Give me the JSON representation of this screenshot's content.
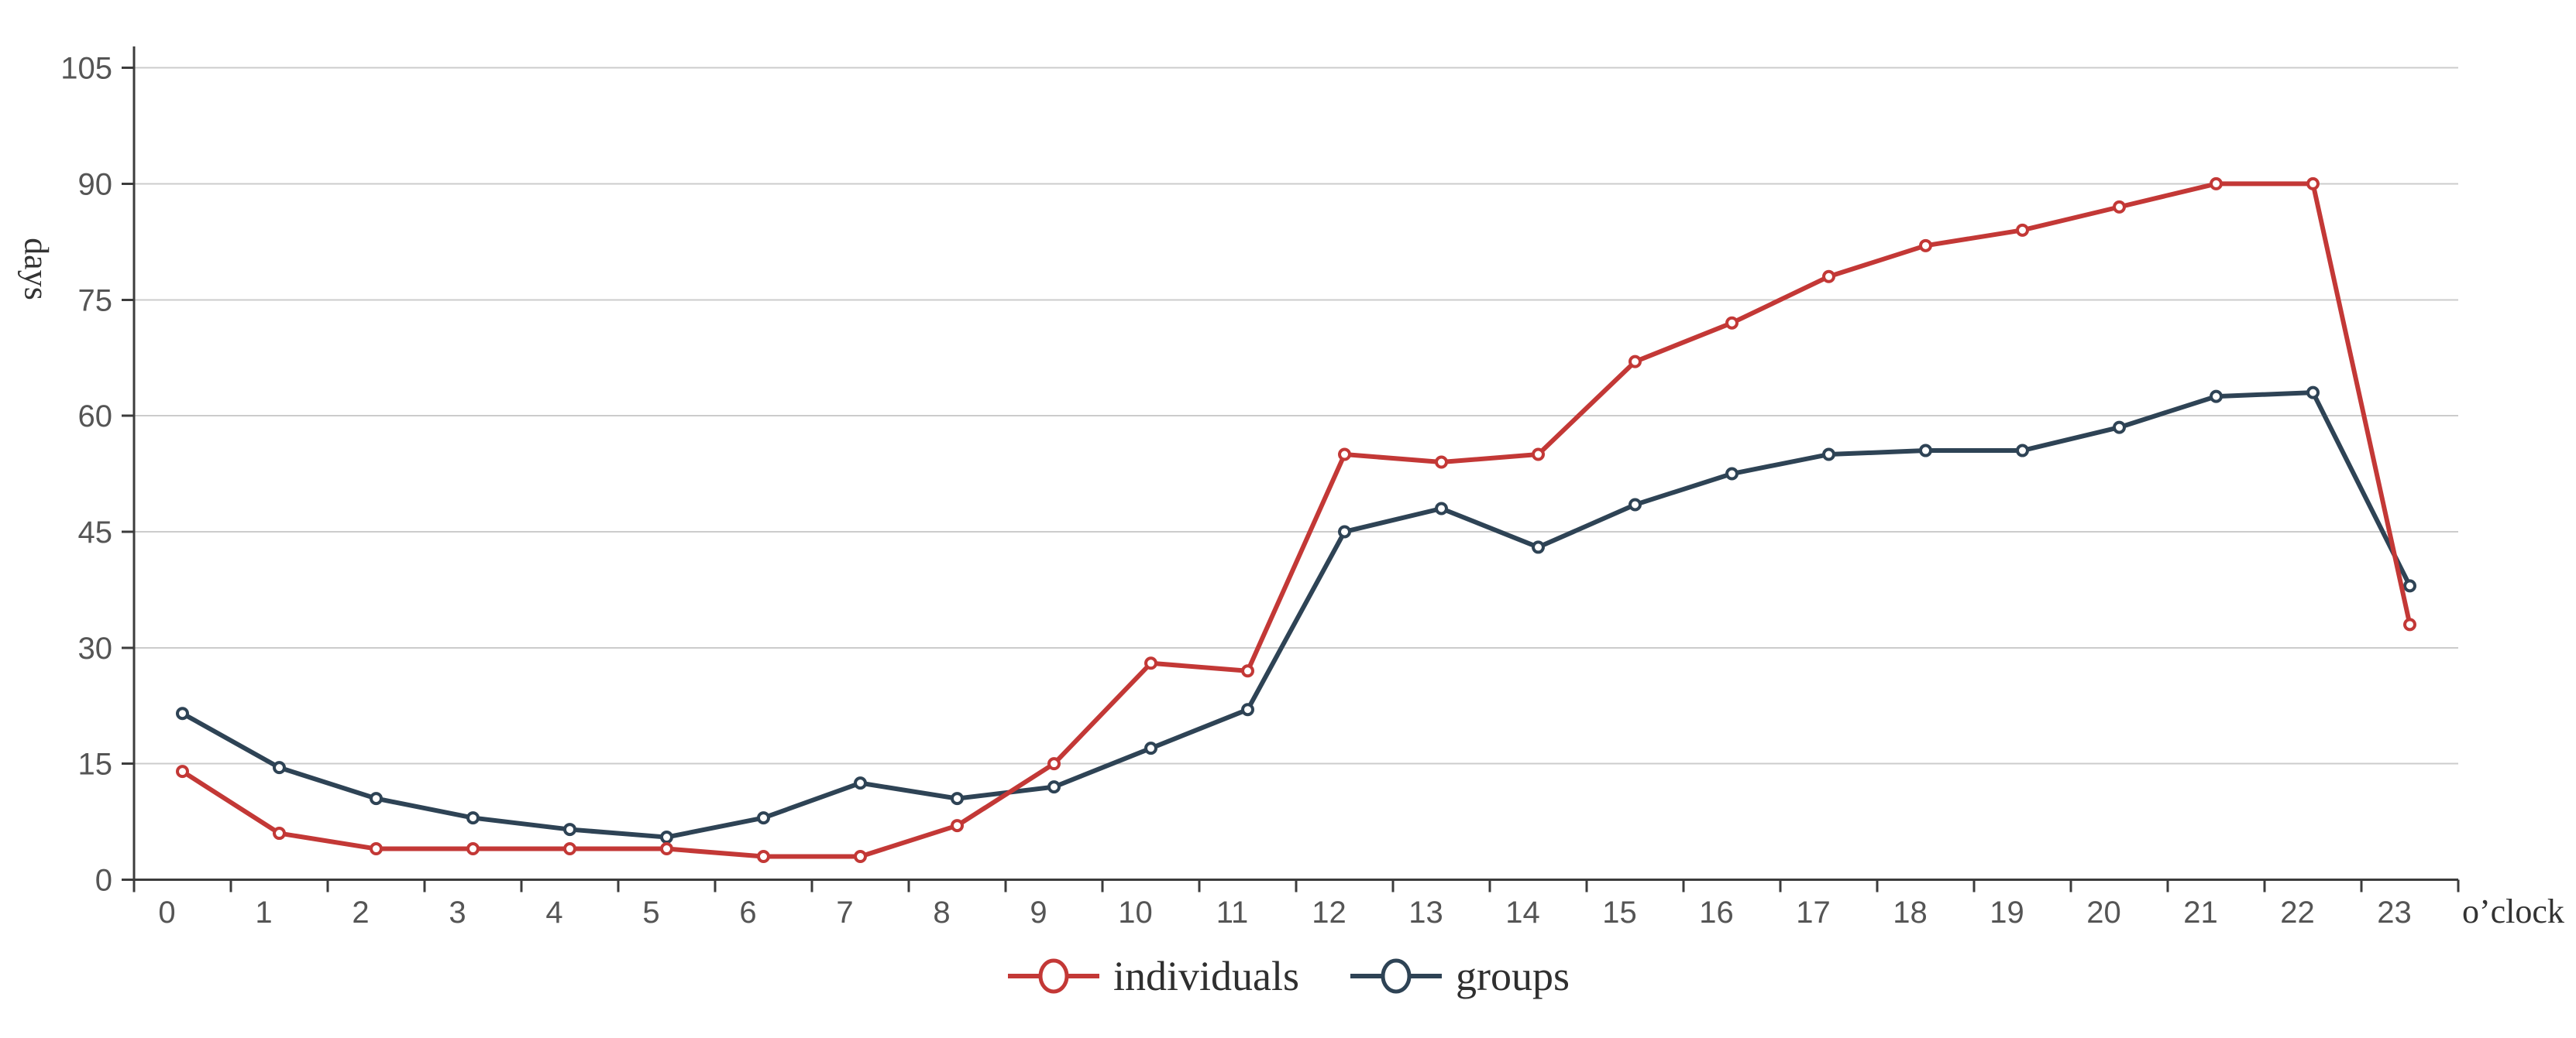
{
  "chart_data": {
    "type": "line",
    "title": "",
    "xlabel": "o’clock",
    "ylabel": "days",
    "categories": [
      "0",
      "1",
      "2",
      "3",
      "4",
      "5",
      "6",
      "7",
      "8",
      "9",
      "10",
      "11",
      "12",
      "13",
      "14",
      "15",
      "16",
      "17",
      "18",
      "19",
      "20",
      "21",
      "22",
      "23"
    ],
    "y_ticks": [
      0,
      15,
      30,
      45,
      60,
      75,
      90,
      105
    ],
    "ylim": [
      0,
      105
    ],
    "grid": "horizontal-only",
    "legend_position": "bottom-center",
    "marker_style": "open-circle",
    "series": [
      {
        "name": "groups",
        "color": "#2e4355",
        "values": [
          21.5,
          14.5,
          10.5,
          8,
          6.5,
          5.5,
          8,
          12.5,
          10.5,
          12,
          17,
          22,
          45,
          48,
          43,
          48.5,
          52.5,
          55,
          55.5,
          55.5,
          58.5,
          62.5,
          63,
          38
        ]
      },
      {
        "name": "individuals",
        "color": "#c33836",
        "values": [
          14,
          6,
          4,
          4,
          4,
          4,
          3,
          3,
          7,
          15,
          28,
          27,
          55,
          54,
          55,
          67,
          72,
          78,
          82,
          84,
          87,
          90,
          90,
          33
        ]
      }
    ],
    "legend_order": [
      "individuals",
      "groups"
    ]
  },
  "colors": {
    "background": "#ffffff",
    "gridline": "#cccccc",
    "axis": "#3c3c3c",
    "tick_label": "#555555",
    "axis_name_text": "#333333",
    "legend_text": "#2f2f2f",
    "individuals": "#c33836",
    "groups": "#2e4355"
  }
}
